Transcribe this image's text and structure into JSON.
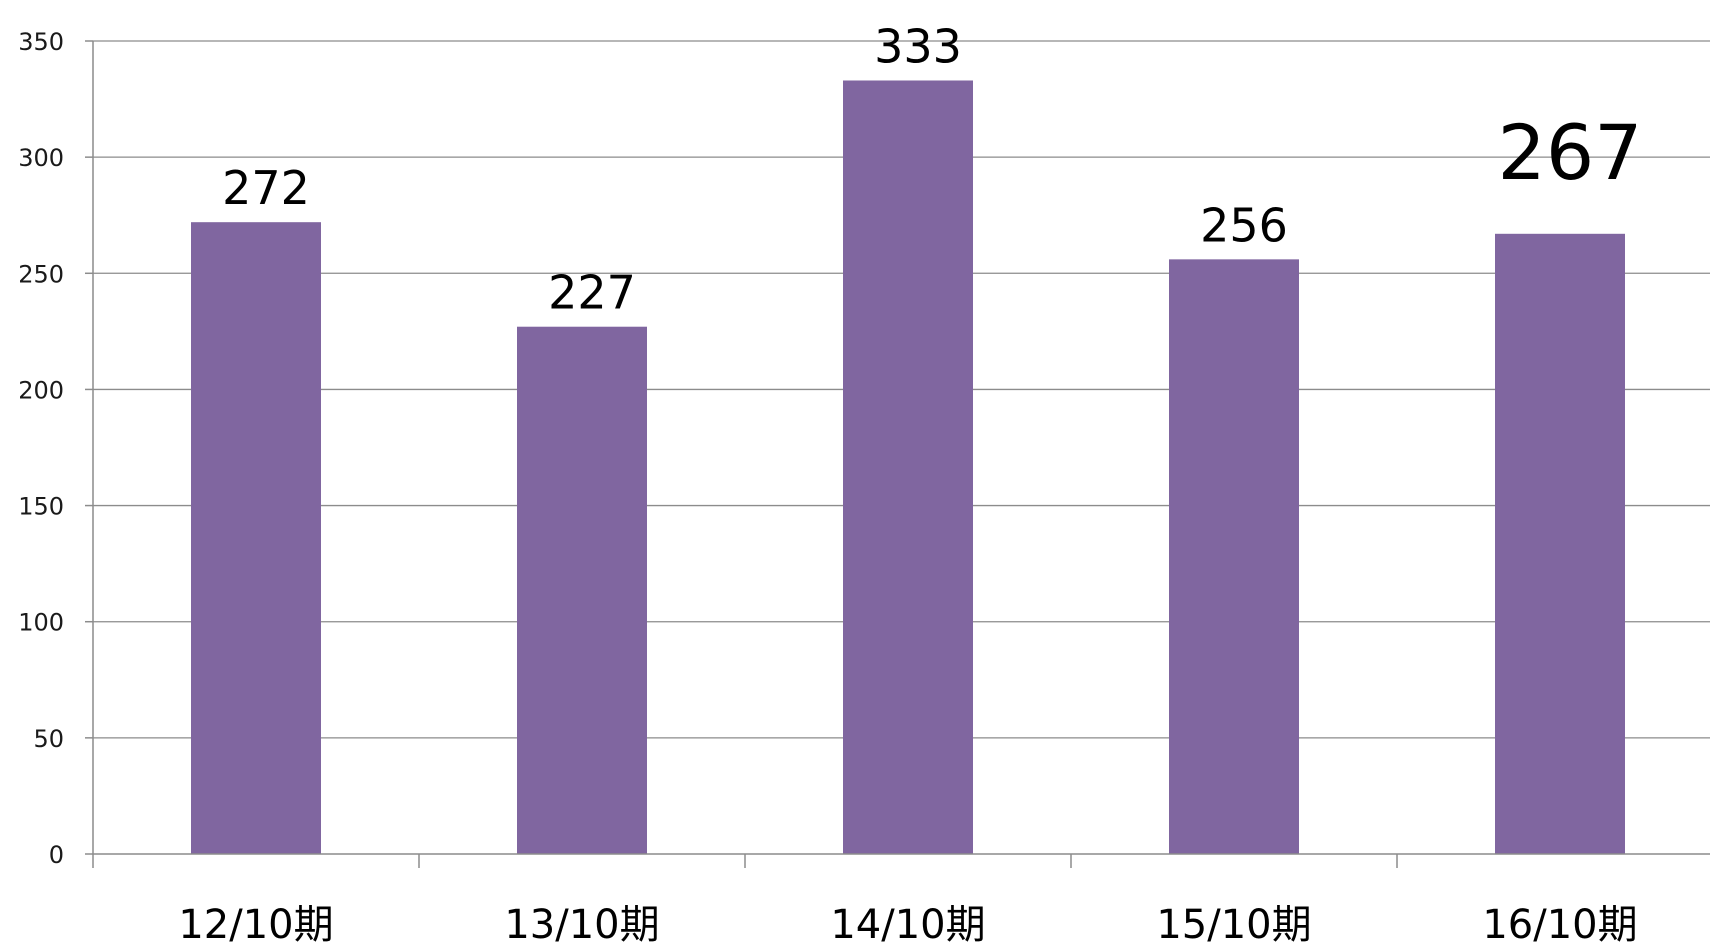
{
  "chart_data": {
    "type": "bar",
    "categories": [
      "12/10期",
      "13/10期",
      "14/10期",
      "15/10期",
      "16/10期"
    ],
    "values": [
      272,
      227,
      333,
      256,
      267
    ],
    "data_labels": [
      "272",
      "227",
      "333",
      "256",
      "267"
    ],
    "highlight_index": 4,
    "title": "",
    "xlabel": "",
    "ylabel": "",
    "ylim": [
      0,
      350
    ],
    "yticks": [
      0,
      50,
      100,
      150,
      200,
      250,
      300,
      350
    ],
    "ytick_labels": [
      "0",
      "50",
      "100",
      "150",
      "200",
      "250",
      "300",
      "350"
    ],
    "grid": true,
    "legend": "none",
    "colors": {
      "bar": "#8066a0",
      "grid": "#8c8c8c",
      "label": "#000000",
      "highlight_label": "#1f3b63"
    }
  }
}
